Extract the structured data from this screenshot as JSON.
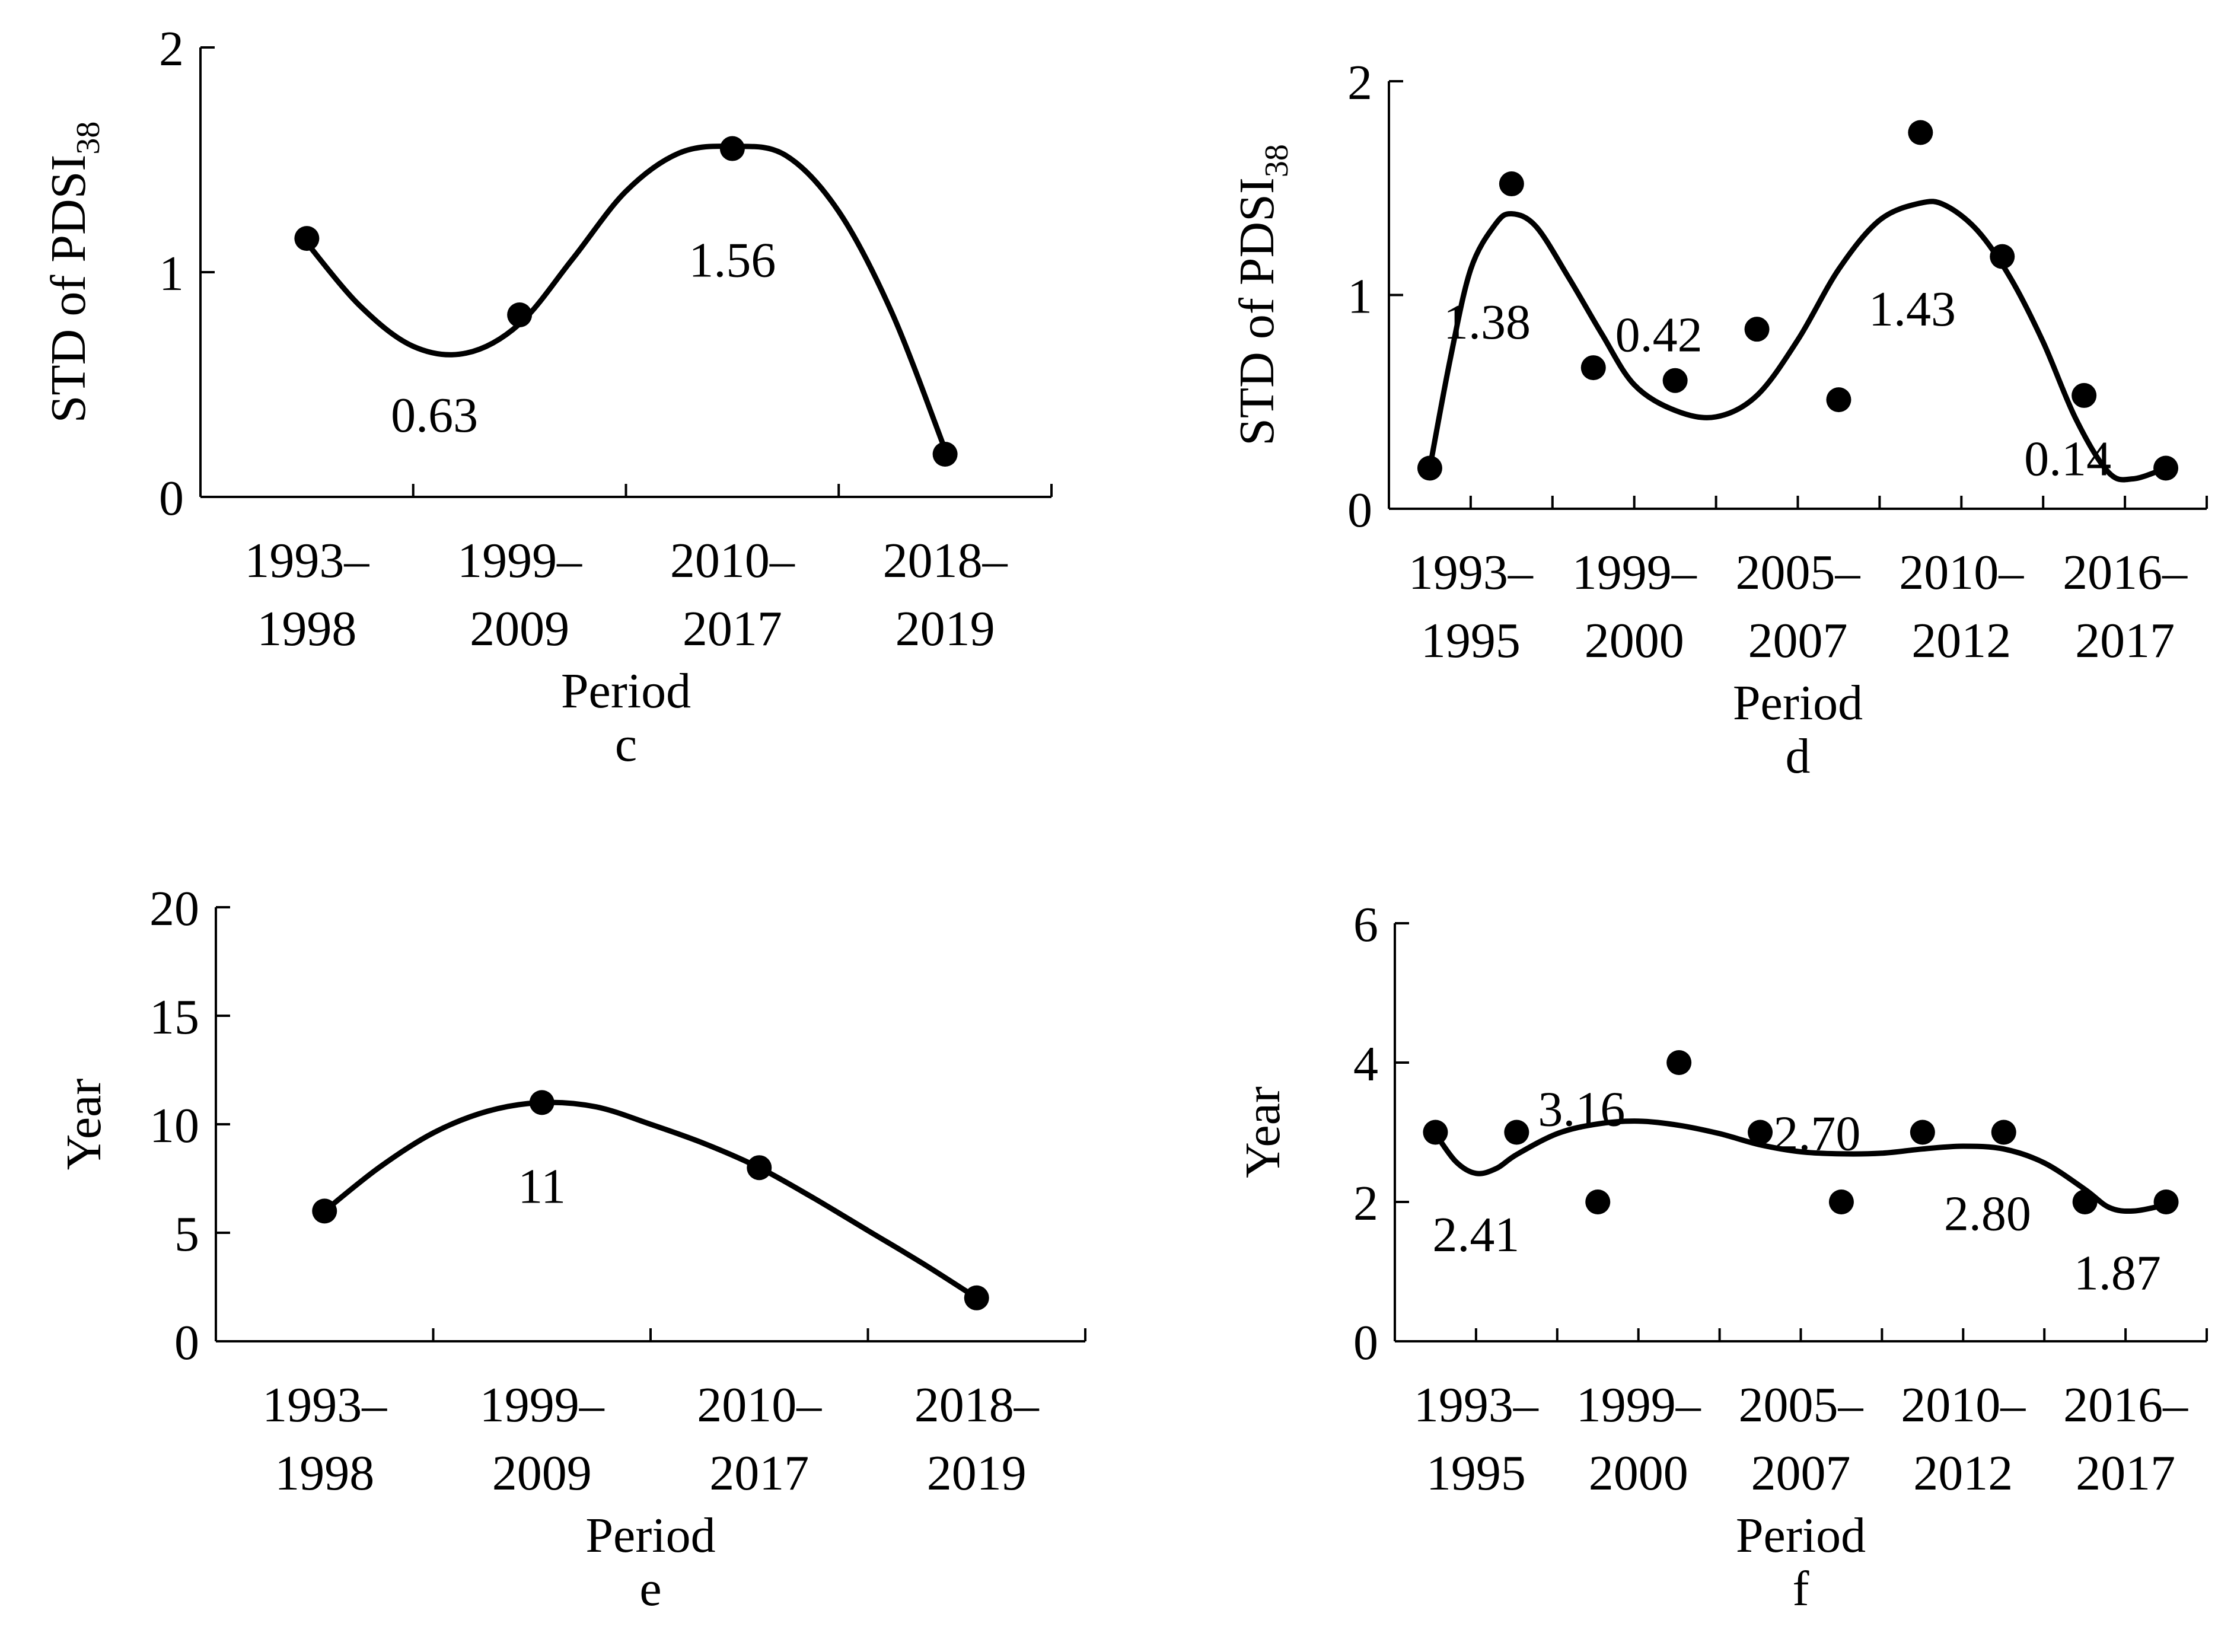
{
  "colors": {
    "ink": "#000000",
    "background": "#ffffff"
  },
  "chart_data": [
    {
      "panel": "c",
      "type": "scatter",
      "caption": "c",
      "xlabel": "Period",
      "ylabel": "STD of PDSI",
      "ylabel_sub": "38",
      "ylim": [
        0,
        2
      ],
      "yticks": [
        "0",
        "1",
        "2"
      ],
      "categories": [
        [
          "1993–",
          "1998"
        ],
        [
          "1999–",
          "2009"
        ],
        [
          "2010–",
          "2017"
        ],
        [
          "2018–",
          "2019"
        ]
      ],
      "series": [
        {
          "name": "observed",
          "type": "scatter",
          "x": [
            1,
            2,
            3,
            4
          ],
          "values": [
            1.15,
            0.81,
            1.55,
            0.19
          ]
        },
        {
          "name": "fitted curve",
          "type": "line",
          "x": [
            1.0,
            1.25,
            1.5,
            1.75,
            2.0,
            2.25,
            2.5,
            2.75,
            3.0,
            3.25,
            3.5,
            3.75,
            4.0
          ],
          "values": [
            1.13,
            0.85,
            0.67,
            0.64,
            0.77,
            1.06,
            1.36,
            1.53,
            1.56,
            1.52,
            1.27,
            0.82,
            0.21
          ]
        }
      ],
      "annotations": [
        {
          "text": "0.63",
          "x": 1.6,
          "y": 0.37
        },
        {
          "text": "1.56",
          "x": 3.0,
          "y": 1.06
        }
      ]
    },
    {
      "panel": "d",
      "type": "scatter",
      "caption": "d",
      "xlabel": "Period",
      "ylabel": "STD of PDSI",
      "ylabel_sub": "38",
      "ylim": [
        0,
        2
      ],
      "yticks": [
        "0",
        "1",
        "2"
      ],
      "categories": [
        [
          "1993–",
          "1995"
        ],
        [
          "1999–",
          "2000"
        ],
        [
          "2005–",
          "2007"
        ],
        [
          "2010–",
          "2012"
        ],
        [
          "2016–",
          "2017"
        ]
      ],
      "series": [
        {
          "name": "observed",
          "type": "scatter",
          "x": [
            0.5,
            1.5,
            2.5,
            3.5,
            4.5,
            5.5,
            6.5,
            7.5,
            8.5,
            9.5
          ],
          "values": [
            0.19,
            1.52,
            0.66,
            0.6,
            0.84,
            0.51,
            1.76,
            1.18,
            0.53,
            0.19
          ]
        },
        {
          "name": "fitted curve",
          "type": "line",
          "x": [
            0.5,
            0.75,
            1.0,
            1.3,
            1.5,
            1.8,
            2.2,
            2.6,
            3.0,
            3.5,
            4.0,
            4.5,
            5.0,
            5.5,
            6.0,
            6.5,
            6.8,
            7.2,
            7.6,
            8.0,
            8.4,
            8.8,
            9.1,
            9.5
          ],
          "values": [
            0.19,
            0.7,
            1.12,
            1.33,
            1.38,
            1.32,
            1.08,
            0.82,
            0.58,
            0.46,
            0.43,
            0.53,
            0.79,
            1.12,
            1.35,
            1.43,
            1.42,
            1.3,
            1.08,
            0.78,
            0.42,
            0.17,
            0.14,
            0.19
          ]
        }
      ],
      "annotations": [
        {
          "text": "1.38",
          "x": 1.2,
          "y": 0.88
        },
        {
          "text": "0.42",
          "x": 3.3,
          "y": 0.82
        },
        {
          "text": "1.43",
          "x": 6.4,
          "y": 0.94
        },
        {
          "text": "0.14",
          "x": 8.3,
          "y": 0.24
        }
      ]
    },
    {
      "panel": "e",
      "type": "scatter",
      "caption": "e",
      "xlabel": "Period",
      "ylabel": "Year",
      "ylabel_sub": "",
      "ylim": [
        0,
        20
      ],
      "yticks": [
        "0",
        "5",
        "10",
        "15",
        "20"
      ],
      "categories": [
        [
          "1993–",
          "1998"
        ],
        [
          "1999–",
          "2009"
        ],
        [
          "2010–",
          "2017"
        ],
        [
          "2018–",
          "2019"
        ]
      ],
      "series": [
        {
          "name": "observed",
          "type": "scatter",
          "x": [
            1,
            2,
            3,
            4
          ],
          "values": [
            6,
            11,
            8,
            2
          ]
        },
        {
          "name": "fitted curve",
          "type": "line",
          "x": [
            1.0,
            1.25,
            1.5,
            1.75,
            2.0,
            2.25,
            2.5,
            2.75,
            3.0,
            3.25,
            3.5,
            3.75,
            4.0
          ],
          "values": [
            6.0,
            8.0,
            9.6,
            10.6,
            11.0,
            10.8,
            10.0,
            9.1,
            8.0,
            6.6,
            5.1,
            3.6,
            2.0
          ]
        }
      ],
      "annotations": [
        {
          "text": "11",
          "x": 2.0,
          "y": 7.2
        }
      ]
    },
    {
      "panel": "f",
      "type": "scatter",
      "caption": "f",
      "xlabel": "Period",
      "ylabel": "Year",
      "ylabel_sub": "",
      "ylim": [
        0,
        6
      ],
      "yticks": [
        "0",
        "2",
        "4",
        "6"
      ],
      "categories": [
        [
          "1993–",
          "1995"
        ],
        [
          "1999–",
          "2000"
        ],
        [
          "2005–",
          "2007"
        ],
        [
          "2010–",
          "2012"
        ],
        [
          "2016–",
          "2017"
        ]
      ],
      "series": [
        {
          "name": "observed",
          "type": "scatter",
          "x": [
            0.5,
            1.5,
            2.5,
            3.5,
            4.5,
            5.5,
            6.5,
            7.5,
            8.5,
            9.5
          ],
          "values": [
            3,
            3,
            2,
            4,
            3,
            2,
            3,
            3,
            2,
            2
          ]
        },
        {
          "name": "fitted curve",
          "type": "line",
          "x": [
            0.5,
            0.75,
            1.0,
            1.25,
            1.5,
            2.0,
            2.5,
            3.0,
            3.5,
            4.0,
            4.5,
            5.0,
            5.5,
            6.0,
            6.5,
            7.0,
            7.5,
            8.0,
            8.5,
            8.8,
            9.1,
            9.5
          ],
          "values": [
            2.98,
            2.58,
            2.41,
            2.48,
            2.68,
            2.98,
            3.12,
            3.16,
            3.1,
            2.98,
            2.82,
            2.72,
            2.69,
            2.7,
            2.76,
            2.8,
            2.76,
            2.56,
            2.18,
            1.92,
            1.87,
            1.96
          ]
        }
      ],
      "annotations": [
        {
          "text": "2.41",
          "x": 1.0,
          "y": 1.55
        },
        {
          "text": "3.16",
          "x": 2.3,
          "y": 3.35
        },
        {
          "text": "2.70",
          "x": 5.2,
          "y": 3.0
        },
        {
          "text": "2.80",
          "x": 7.3,
          "y": 1.85
        },
        {
          "text": "1.87",
          "x": 8.9,
          "y": 1.0
        }
      ]
    }
  ]
}
